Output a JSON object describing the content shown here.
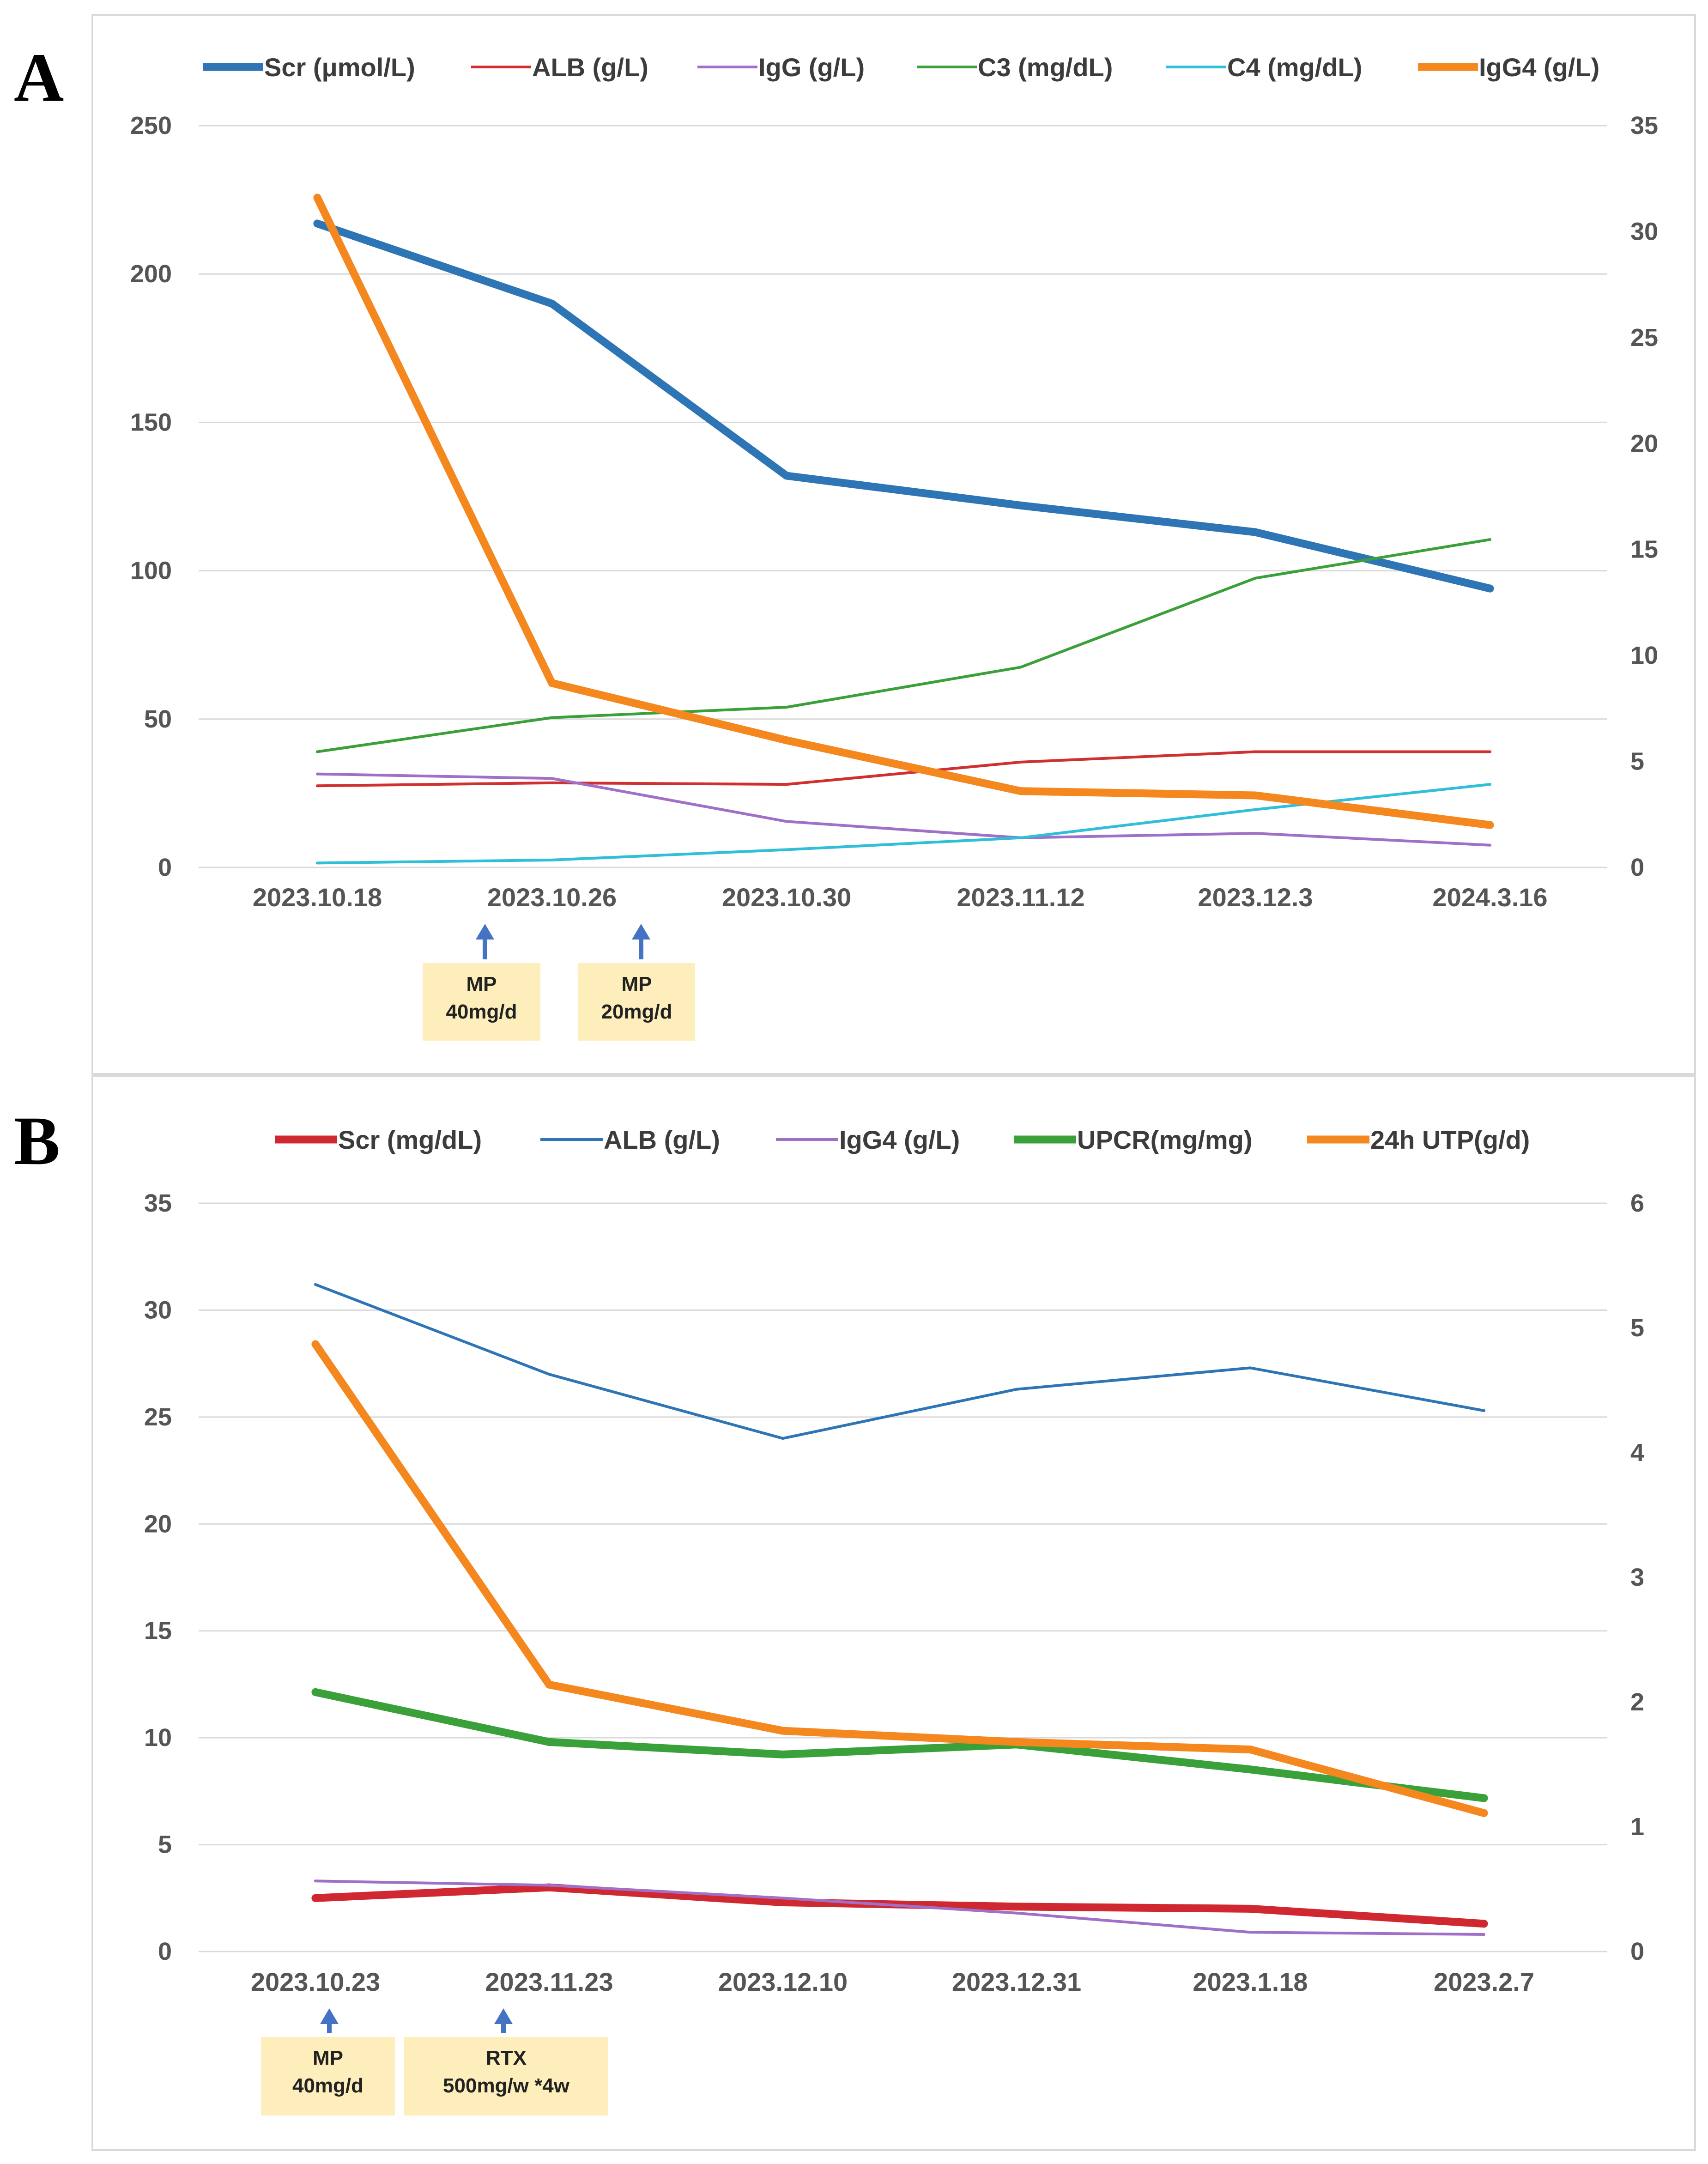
{
  "chart_data": [
    {
      "type": "line",
      "panel_label": "A",
      "categories": [
        "2023.10.18",
        "2023.10.26",
        "2023.10.30",
        "2023.11.12",
        "2023.12.3",
        "2024.3.16"
      ],
      "ylim": [
        0,
        250
      ],
      "yticks": [
        "0",
        "50",
        "100",
        "150",
        "200",
        "250"
      ],
      "ylim2": [
        0,
        35
      ],
      "yticks2": [
        "0",
        "5",
        "10",
        "15",
        "20",
        "25",
        "30",
        "35"
      ],
      "legend_position": "top",
      "grid": true,
      "series": [
        {
          "name": "Scr (μmol/L)",
          "axis": "left",
          "color": "#2e75b6",
          "weight": "thick",
          "values": [
            217,
            190,
            132,
            122,
            113,
            94
          ]
        },
        {
          "name": "ALB (g/L)",
          "axis": "left",
          "color": "#d03030",
          "weight": "thin",
          "values": [
            27.5,
            28.5,
            28,
            35.5,
            39,
            39
          ]
        },
        {
          "name": "IgG (g/L)",
          "axis": "left",
          "color": "#a070c8",
          "weight": "thin",
          "values": [
            31.5,
            30,
            15.5,
            10,
            11.5,
            7.5
          ]
        },
        {
          "name": "C3 (mg/dL)",
          "axis": "left",
          "color": "#3aa13a",
          "weight": "thin",
          "values": [
            39,
            50.5,
            54,
            67.5,
            97.5,
            110.5
          ]
        },
        {
          "name": "C4 (mg/dL)",
          "axis": "left",
          "color": "#2fbfd8",
          "weight": "thin",
          "values": [
            1.5,
            2.5,
            6,
            10,
            19.5,
            28
          ]
        },
        {
          "name": "IgG4 (g/L)",
          "axis": "right",
          "color": "#f5871f",
          "weight": "thick",
          "values": [
            31.6,
            8.7,
            6.0,
            3.6,
            3.4,
            2.0
          ]
        }
      ],
      "annotations": [
        {
          "at_category": "2023.10.26",
          "lines": [
            "MP",
            "40mg/d"
          ]
        },
        {
          "at_category": "2023.10.26-2023.10.30",
          "lines": [
            "MP",
            "20mg/d"
          ]
        }
      ]
    },
    {
      "type": "line",
      "panel_label": "B",
      "categories": [
        "2023.10.23",
        "2023.11.23",
        "2023.12.10",
        "2023.12.31",
        "2023.1.18",
        "2023.2.7"
      ],
      "ylim": [
        0,
        35
      ],
      "yticks": [
        "0",
        "5",
        "10",
        "15",
        "20",
        "25",
        "30",
        "35"
      ],
      "ylim2": [
        0,
        6
      ],
      "yticks2": [
        "0",
        "1",
        "2",
        "3",
        "4",
        "5",
        "6"
      ],
      "legend_position": "top",
      "grid": true,
      "series": [
        {
          "name": "Scr (mg/dL)",
          "axis": "left",
          "color": "#d02830",
          "weight": "thick",
          "values": [
            2.5,
            3.0,
            2.3,
            2.1,
            2.0,
            1.3
          ]
        },
        {
          "name": "ALB (g/L)",
          "axis": "left",
          "color": "#2e75b6",
          "weight": "thin",
          "values": [
            31.2,
            27.0,
            24.0,
            26.3,
            27.3,
            25.3
          ]
        },
        {
          "name": "IgG4 (g/L)",
          "axis": "left",
          "color": "#a070c8",
          "weight": "thin",
          "values": [
            3.3,
            3.1,
            2.5,
            1.8,
            0.9,
            0.8
          ]
        },
        {
          "name": "UPCR(mg/mg)",
          "axis": "right",
          "color": "#3aa13a",
          "weight": "thick",
          "values": [
            2.08,
            1.68,
            1.58,
            1.66,
            1.46,
            1.23
          ]
        },
        {
          "name": "24h UTP(g/d)",
          "axis": "right",
          "color": "#f5871f",
          "weight": "thick",
          "values": [
            4.87,
            2.14,
            1.77,
            1.68,
            1.62,
            1.11
          ]
        }
      ],
      "annotations": [
        {
          "at_category": "2023.10.23",
          "lines": [
            "MP",
            "40mg/d"
          ]
        },
        {
          "at_category": "2023.11.23",
          "lines": [
            "RTX",
            "500mg/w *4w"
          ]
        }
      ]
    }
  ]
}
